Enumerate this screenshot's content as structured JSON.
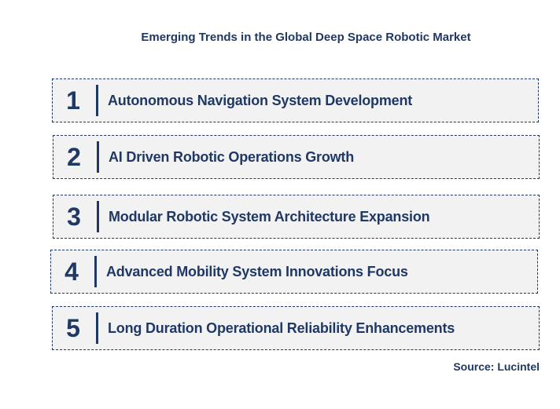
{
  "title": "Emerging Trends in the Global Deep Space Robotic Market",
  "trends": [
    {
      "number": "1",
      "label": "Autonomous Navigation System Development"
    },
    {
      "number": "2",
      "label": "AI Driven Robotic Operations Growth"
    },
    {
      "number": "3",
      "label": "Modular Robotic System Architecture Expansion"
    },
    {
      "number": "4",
      "label": "Advanced Mobility System Innovations Focus"
    },
    {
      "number": "5",
      "label": "Long Duration Operational Reliability Enhancements"
    }
  ],
  "source": "Source: Lucintel",
  "colors": {
    "text": "#1f3864",
    "box_fill": "#f2f2f2",
    "box_border": "#1f3864"
  }
}
